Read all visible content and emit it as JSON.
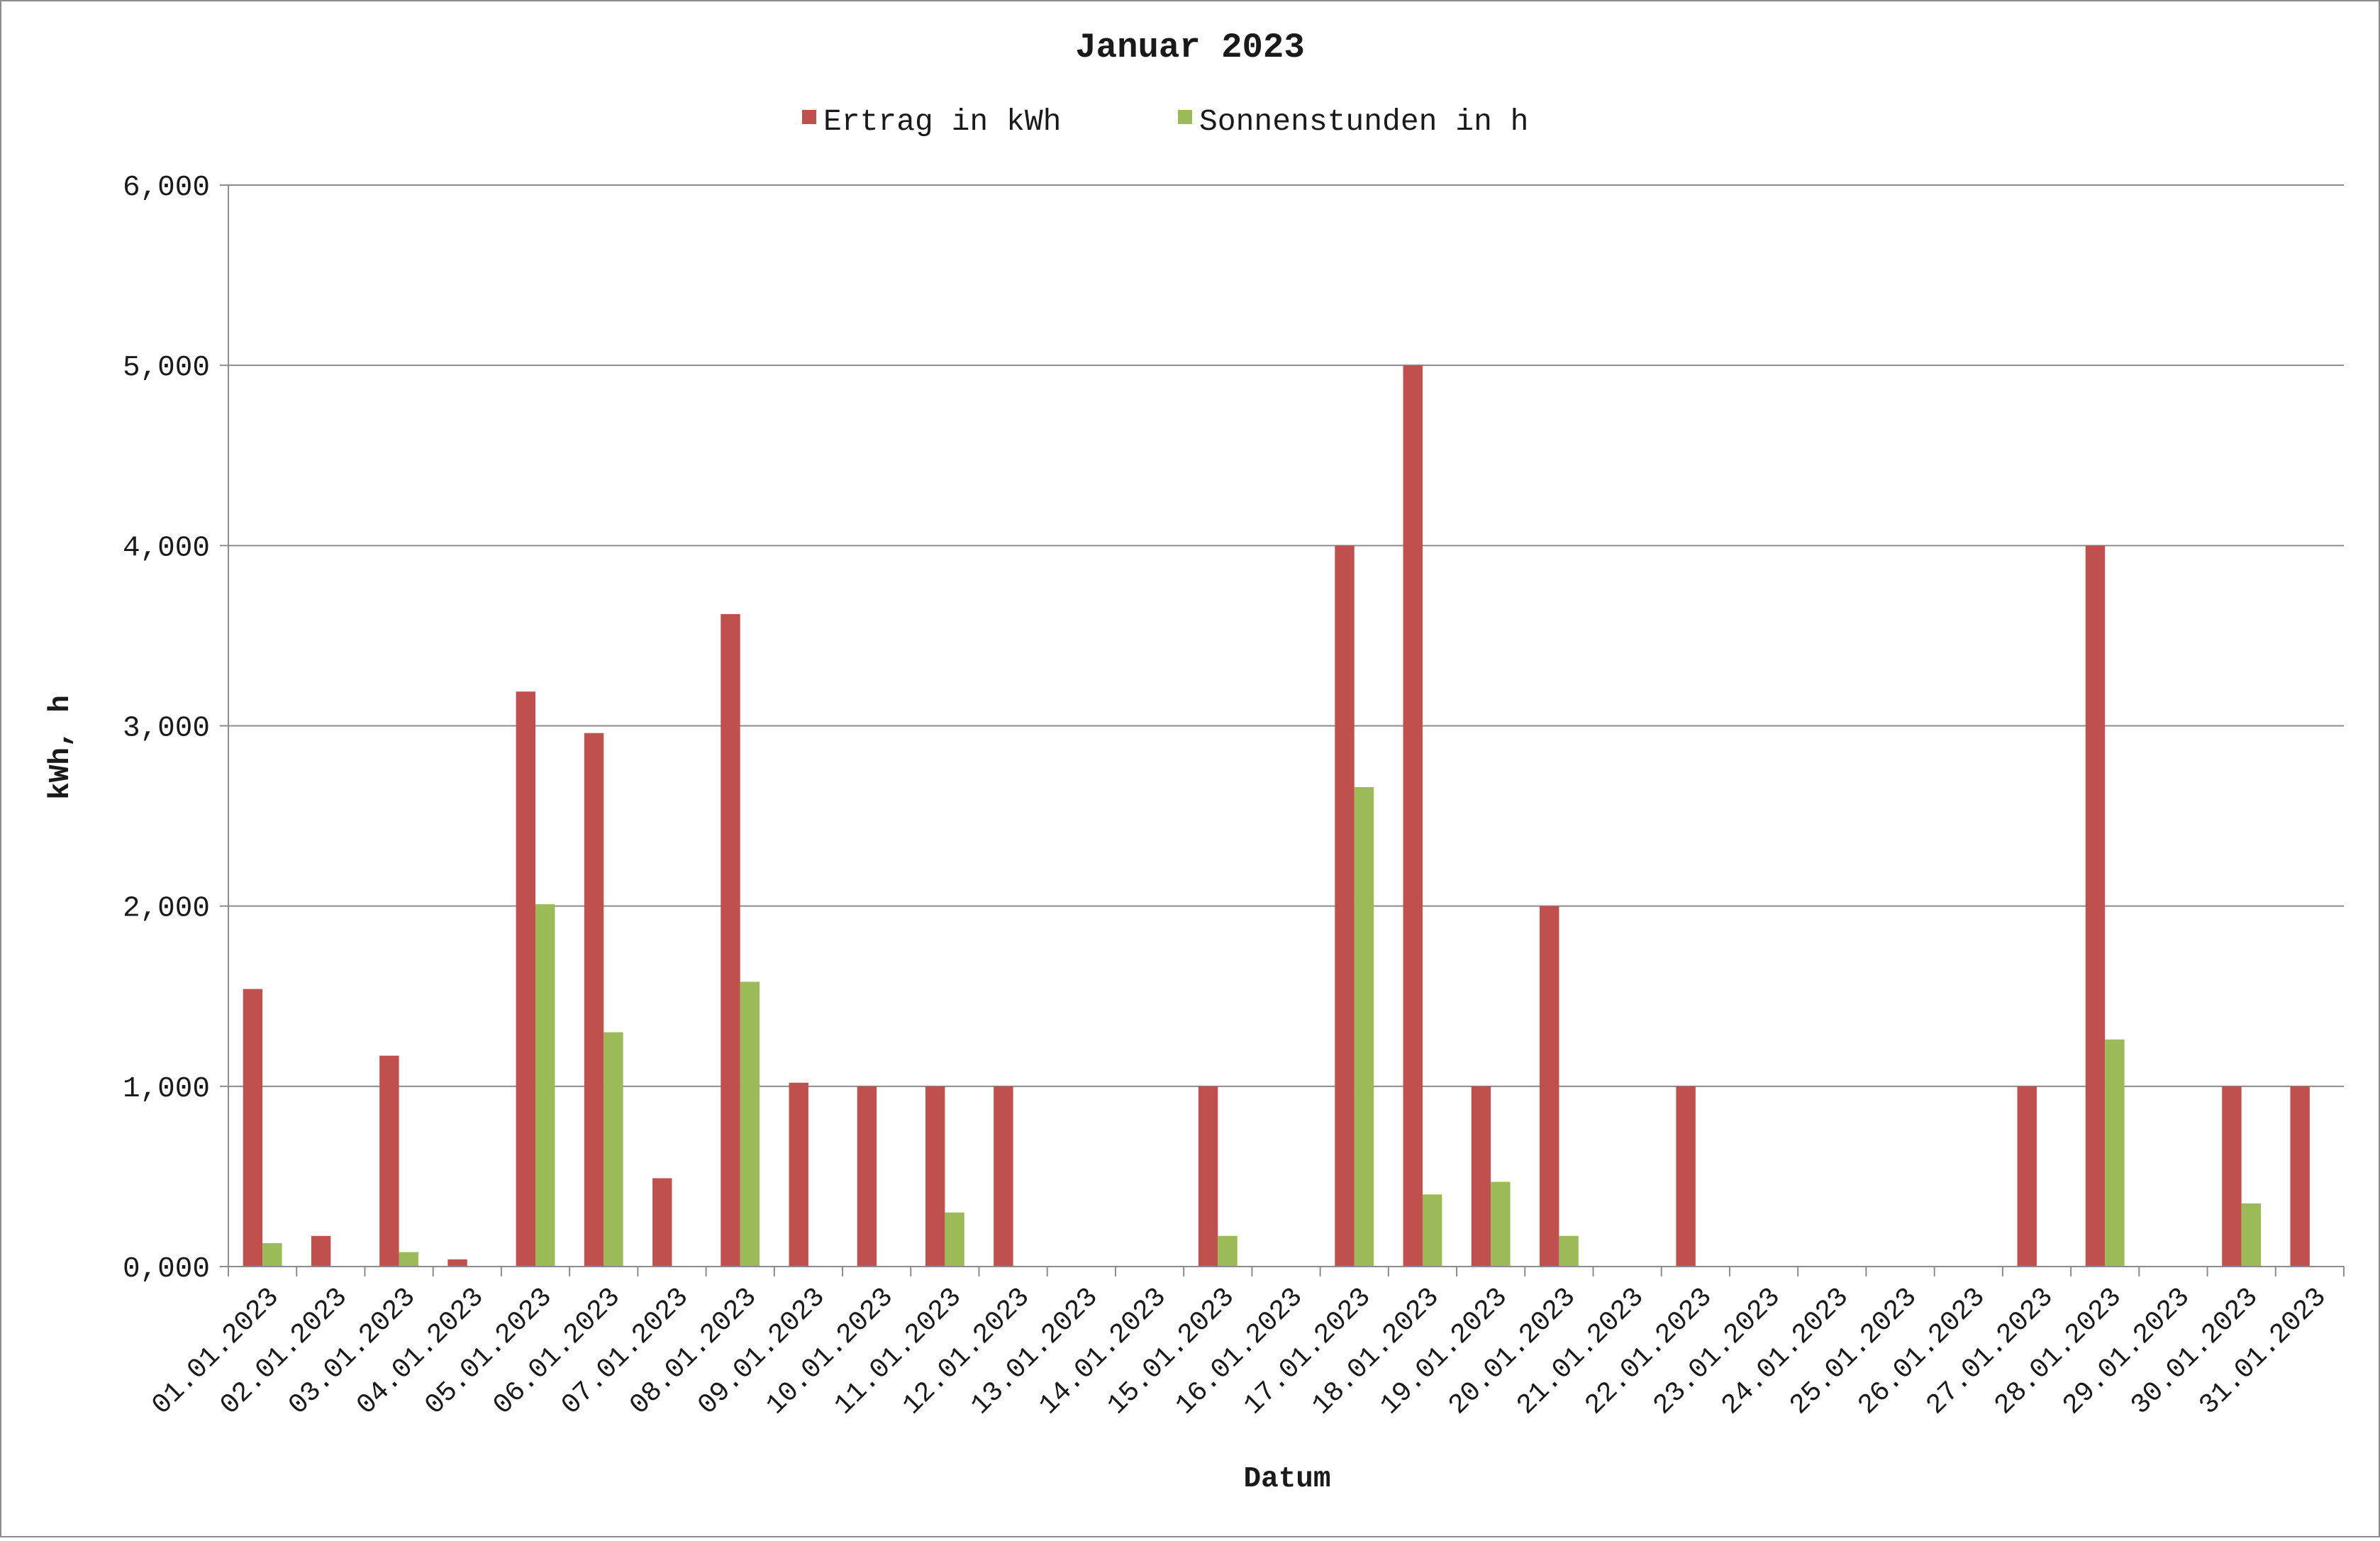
{
  "chart_data": {
    "type": "bar",
    "title": "Januar 2023",
    "xlabel": "Datum",
    "ylabel": "kWh, h",
    "ylim": [
      0,
      6
    ],
    "yticks": [
      "0,000",
      "1,000",
      "2,000",
      "3,000",
      "4,000",
      "5,000",
      "6,000"
    ],
    "grid": true,
    "legend_position": "top-center",
    "categories": [
      "01.01.2023",
      "02.01.2023",
      "03.01.2023",
      "04.01.2023",
      "05.01.2023",
      "06.01.2023",
      "07.01.2023",
      "08.01.2023",
      "09.01.2023",
      "10.01.2023",
      "11.01.2023",
      "12.01.2023",
      "13.01.2023",
      "14.01.2023",
      "15.01.2023",
      "16.01.2023",
      "17.01.2023",
      "18.01.2023",
      "19.01.2023",
      "20.01.2023",
      "21.01.2023",
      "22.01.2023",
      "23.01.2023",
      "24.01.2023",
      "25.01.2023",
      "26.01.2023",
      "27.01.2023",
      "28.01.2023",
      "29.01.2023",
      "30.01.2023",
      "31.01.2023"
    ],
    "series": [
      {
        "name": "Ertrag in kWh",
        "color": "#C0504D",
        "values": [
          1.54,
          0.17,
          1.17,
          0.04,
          3.19,
          2.96,
          0.49,
          3.62,
          1.02,
          1.0,
          1.0,
          1.0,
          0,
          0,
          1.0,
          0,
          4.0,
          5.0,
          1.0,
          2.0,
          0,
          1.0,
          0,
          0,
          0,
          0,
          1.0,
          4.0,
          0,
          1.0,
          1.0
        ]
      },
      {
        "name": "Sonnenstunden in h",
        "color": "#9BBB59",
        "values": [
          0.13,
          0,
          0.08,
          0,
          2.01,
          1.3,
          0,
          1.58,
          0,
          0,
          0.3,
          0,
          0,
          0,
          0.17,
          0,
          2.66,
          0.4,
          0.47,
          0.17,
          0,
          0,
          0,
          0,
          0,
          0,
          0,
          1.26,
          0,
          0.35,
          0
        ]
      }
    ]
  }
}
